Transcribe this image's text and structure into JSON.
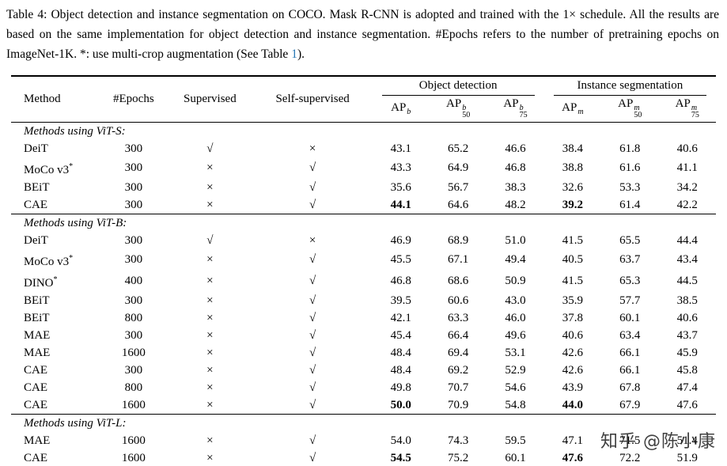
{
  "caption": {
    "text_before_link": "Table 4: Object detection and instance segmentation on COCO. Mask R-CNN is adopted and trained with the 1× schedule. All the results are based on the same implementation for object detection and instance segmentation. #Epochs refers to the number of pretraining epochs on ImageNet-1K. *: use multi-crop augmentation (See Table ",
    "link_text": "1",
    "text_after_link": ")."
  },
  "colors": {
    "text": "#000000",
    "background": "#ffffff",
    "link": "#2878b5",
    "rule": "#000000"
  },
  "watermark": "知乎 @陈小康",
  "table": {
    "col_headers": [
      "Method",
      "#Epochs",
      "Supervised",
      "Self-supervised"
    ],
    "groups": [
      {
        "label": "Object detection"
      },
      {
        "label": "Instance segmentation"
      }
    ],
    "metrics": [
      {
        "base": "AP",
        "sup": "b",
        "sub": ""
      },
      {
        "base": "AP",
        "sup": "b",
        "sub": "50"
      },
      {
        "base": "AP",
        "sup": "b",
        "sub": "75"
      },
      {
        "base": "AP",
        "sup": "m",
        "sub": ""
      },
      {
        "base": "AP",
        "sup": "m",
        "sub": "50"
      },
      {
        "base": "AP",
        "sup": "m",
        "sub": "75"
      }
    ],
    "check_symbol": "√",
    "cross_symbol": "×",
    "sections": [
      {
        "title": "Methods using ViT-S:",
        "rows": [
          {
            "method": "DeiT",
            "method_sup": "",
            "epochs": "300",
            "supervised": "check",
            "self_supervised": "cross",
            "values": [
              "43.1",
              "65.2",
              "46.6",
              "38.4",
              "61.8",
              "40.6"
            ],
            "bold": []
          },
          {
            "method": "MoCo v3",
            "method_sup": "*",
            "epochs": "300",
            "supervised": "cross",
            "self_supervised": "check",
            "values": [
              "43.3",
              "64.9",
              "46.8",
              "38.8",
              "61.6",
              "41.1"
            ],
            "bold": []
          },
          {
            "method": "BEiT",
            "method_sup": "",
            "epochs": "300",
            "supervised": "cross",
            "self_supervised": "check",
            "values": [
              "35.6",
              "56.7",
              "38.3",
              "32.6",
              "53.3",
              "34.2"
            ],
            "bold": []
          },
          {
            "method": "CAE",
            "method_sup": "",
            "epochs": "300",
            "supervised": "cross",
            "self_supervised": "check",
            "values": [
              "44.1",
              "64.6",
              "48.2",
              "39.2",
              "61.4",
              "42.2"
            ],
            "bold": [
              0,
              3
            ]
          }
        ]
      },
      {
        "title": "Methods using ViT-B:",
        "rows": [
          {
            "method": "DeiT",
            "method_sup": "",
            "epochs": "300",
            "supervised": "check",
            "self_supervised": "cross",
            "values": [
              "46.9",
              "68.9",
              "51.0",
              "41.5",
              "65.5",
              "44.4"
            ],
            "bold": []
          },
          {
            "method": "MoCo v3",
            "method_sup": "*",
            "epochs": "300",
            "supervised": "cross",
            "self_supervised": "check",
            "values": [
              "45.5",
              "67.1",
              "49.4",
              "40.5",
              "63.7",
              "43.4"
            ],
            "bold": []
          },
          {
            "method": "DINO",
            "method_sup": "*",
            "epochs": "400",
            "supervised": "cross",
            "self_supervised": "check",
            "values": [
              "46.8",
              "68.6",
              "50.9",
              "41.5",
              "65.3",
              "44.5"
            ],
            "bold": []
          },
          {
            "method": "BEiT",
            "method_sup": "",
            "epochs": "300",
            "supervised": "cross",
            "self_supervised": "check",
            "values": [
              "39.5",
              "60.6",
              "43.0",
              "35.9",
              "57.7",
              "38.5"
            ],
            "bold": []
          },
          {
            "method": "BEiT",
            "method_sup": "",
            "epochs": "800",
            "supervised": "cross",
            "self_supervised": "check",
            "values": [
              "42.1",
              "63.3",
              "46.0",
              "37.8",
              "60.1",
              "40.6"
            ],
            "bold": []
          },
          {
            "method": "MAE",
            "method_sup": "",
            "epochs": "300",
            "supervised": "cross",
            "self_supervised": "check",
            "values": [
              "45.4",
              "66.4",
              "49.6",
              "40.6",
              "63.4",
              "43.7"
            ],
            "bold": []
          },
          {
            "method": "MAE",
            "method_sup": "",
            "epochs": "1600",
            "supervised": "cross",
            "self_supervised": "check",
            "values": [
              "48.4",
              "69.4",
              "53.1",
              "42.6",
              "66.1",
              "45.9"
            ],
            "bold": []
          },
          {
            "method": "CAE",
            "method_sup": "",
            "epochs": "300",
            "supervised": "cross",
            "self_supervised": "check",
            "values": [
              "48.4",
              "69.2",
              "52.9",
              "42.6",
              "66.1",
              "45.8"
            ],
            "bold": []
          },
          {
            "method": "CAE",
            "method_sup": "",
            "epochs": "800",
            "supervised": "cross",
            "self_supervised": "check",
            "values": [
              "49.8",
              "70.7",
              "54.6",
              "43.9",
              "67.8",
              "47.4"
            ],
            "bold": []
          },
          {
            "method": "CAE",
            "method_sup": "",
            "epochs": "1600",
            "supervised": "cross",
            "self_supervised": "check",
            "values": [
              "50.0",
              "70.9",
              "54.8",
              "44.0",
              "67.9",
              "47.6"
            ],
            "bold": [
              0,
              3
            ]
          }
        ]
      },
      {
        "title": "Methods using ViT-L:",
        "rows": [
          {
            "method": "MAE",
            "method_sup": "",
            "epochs": "1600",
            "supervised": "cross",
            "self_supervised": "check",
            "values": [
              "54.0",
              "74.3",
              "59.5",
              "47.1",
              "71.5",
              "51.4"
            ],
            "bold": []
          },
          {
            "method": "CAE",
            "method_sup": "",
            "epochs": "1600",
            "supervised": "cross",
            "self_supervised": "check",
            "values": [
              "54.5",
              "75.2",
              "60.1",
              "47.6",
              "72.2",
              "51.9"
            ],
            "bold": [
              0,
              3
            ]
          }
        ]
      }
    ]
  }
}
